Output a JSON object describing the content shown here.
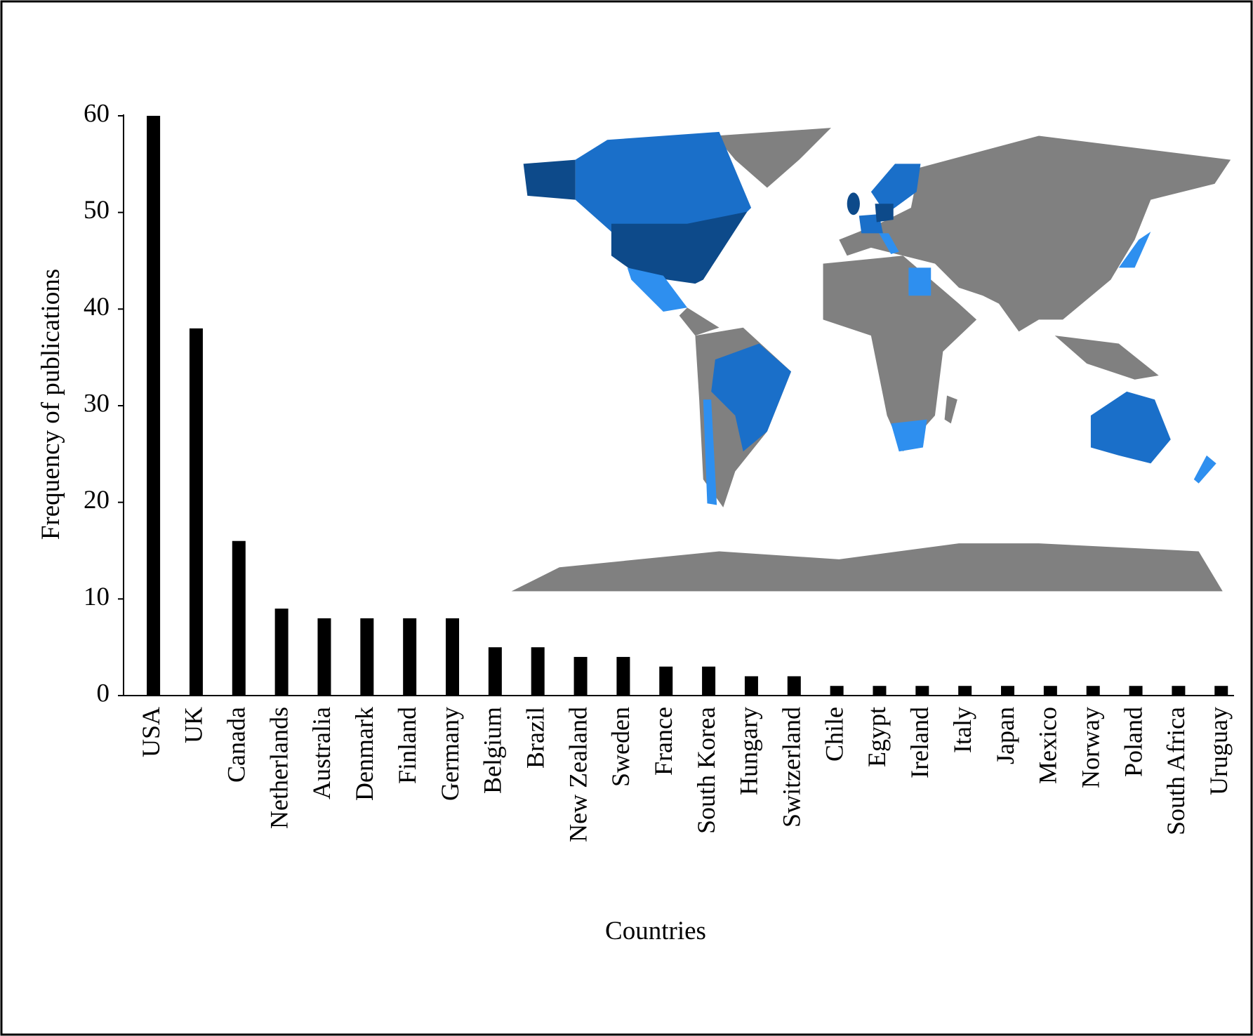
{
  "chart_data": {
    "type": "bar",
    "y_label": "Frequency of publications",
    "x_label": "Countries",
    "categories": [
      "USA",
      "UK",
      "Canada",
      "Netherlands",
      "Australia",
      "Denmark",
      "Finland",
      "Germany",
      "Belgium",
      "Brazil",
      "New Zealand",
      "Sweden",
      "France",
      "South Korea",
      "Hungary",
      "Switzerland",
      "Chile",
      "Egypt",
      "Ireland",
      "Italy",
      "Japan",
      "Mexico",
      "Norway",
      "Poland",
      "South Africa",
      "Uruguay"
    ],
    "values": [
      60,
      38,
      16,
      9,
      8,
      8,
      8,
      8,
      5,
      5,
      4,
      4,
      3,
      3,
      2,
      2,
      1,
      1,
      1,
      1,
      1,
      1,
      1,
      1,
      1,
      1
    ],
    "color": "#000000",
    "ylim": [
      0,
      60
    ],
    "yticks": [
      0,
      10,
      20,
      30,
      40,
      50,
      60
    ],
    "grid": false
  }
}
